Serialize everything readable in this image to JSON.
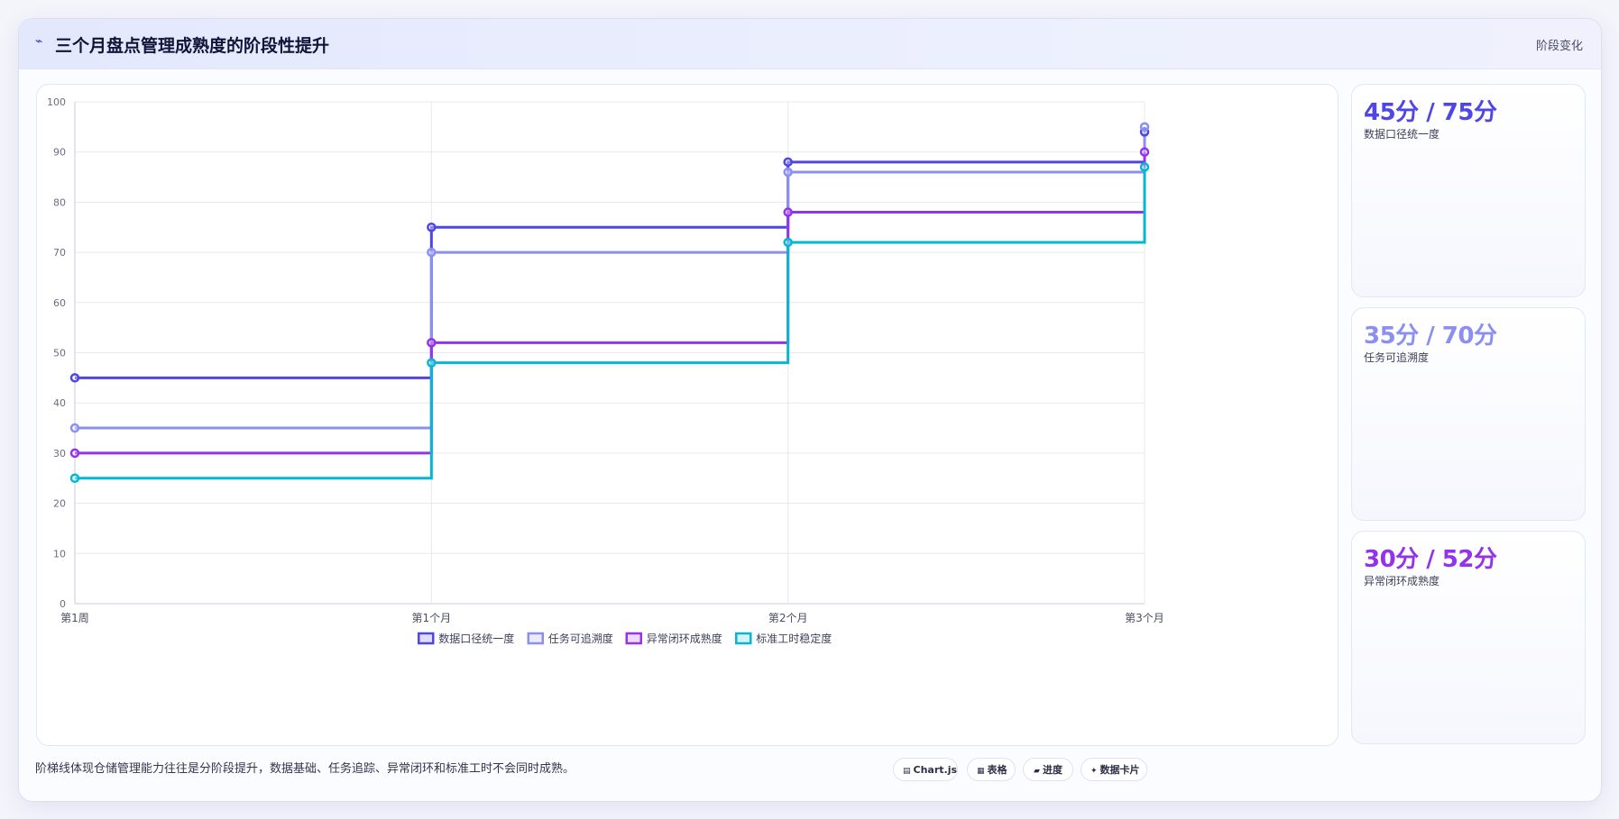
{
  "header": {
    "icon": "chart-trend-icon",
    "title": "三个月盘点管理成熟度的阶段性提升",
    "tag": "阶段变化"
  },
  "chart_data": {
    "type": "line",
    "step": true,
    "title": "",
    "xlabel": "",
    "ylabel": "",
    "categories": [
      "第1周",
      "第1个月",
      "第2个月",
      "第3个月"
    ],
    "ylim": [
      0,
      100
    ],
    "yticks": [
      0,
      10,
      20,
      30,
      40,
      50,
      60,
      70,
      80,
      90,
      100
    ],
    "grid": true,
    "legend_position": "bottom",
    "series": [
      {
        "name": "数据口径统一度",
        "color": "#4f46e5",
        "values": [
          45,
          75,
          88,
          94
        ]
      },
      {
        "name": "任务可追溯度",
        "color": "#8b8ff0",
        "values": [
          35,
          70,
          86,
          95
        ]
      },
      {
        "name": "异常闭环成熟度",
        "color": "#9333ea",
        "values": [
          30,
          52,
          78,
          90
        ]
      },
      {
        "name": "标准工时稳定度",
        "color": "#06b6d4",
        "values": [
          25,
          48,
          72,
          87
        ]
      }
    ]
  },
  "stats": [
    {
      "value": "45分 / 75分",
      "label": "数据口径统一度",
      "color": "#4f46e5"
    },
    {
      "value": "35分 / 70分",
      "label": "任务可追溯度",
      "color": "#8b8ff0"
    },
    {
      "value": "30分 / 52分",
      "label": "异常闭环成熟度",
      "color": "#9333ea"
    }
  ],
  "footer": {
    "note": "阶梯线体现仓储管理能力往往是分阶段提升，数据基础、任务追踪、异常闭环和标准工时不会同时成熟。",
    "pills": [
      {
        "icon": "chart-icon",
        "glyph": "▤",
        "label": "Chart.js"
      },
      {
        "icon": "table-icon",
        "glyph": "▦",
        "label": "表格"
      },
      {
        "icon": "progress-icon",
        "glyph": "▰",
        "label": "进度"
      },
      {
        "icon": "sparkle-icon",
        "glyph": "✦",
        "label": "数据卡片"
      }
    ]
  }
}
